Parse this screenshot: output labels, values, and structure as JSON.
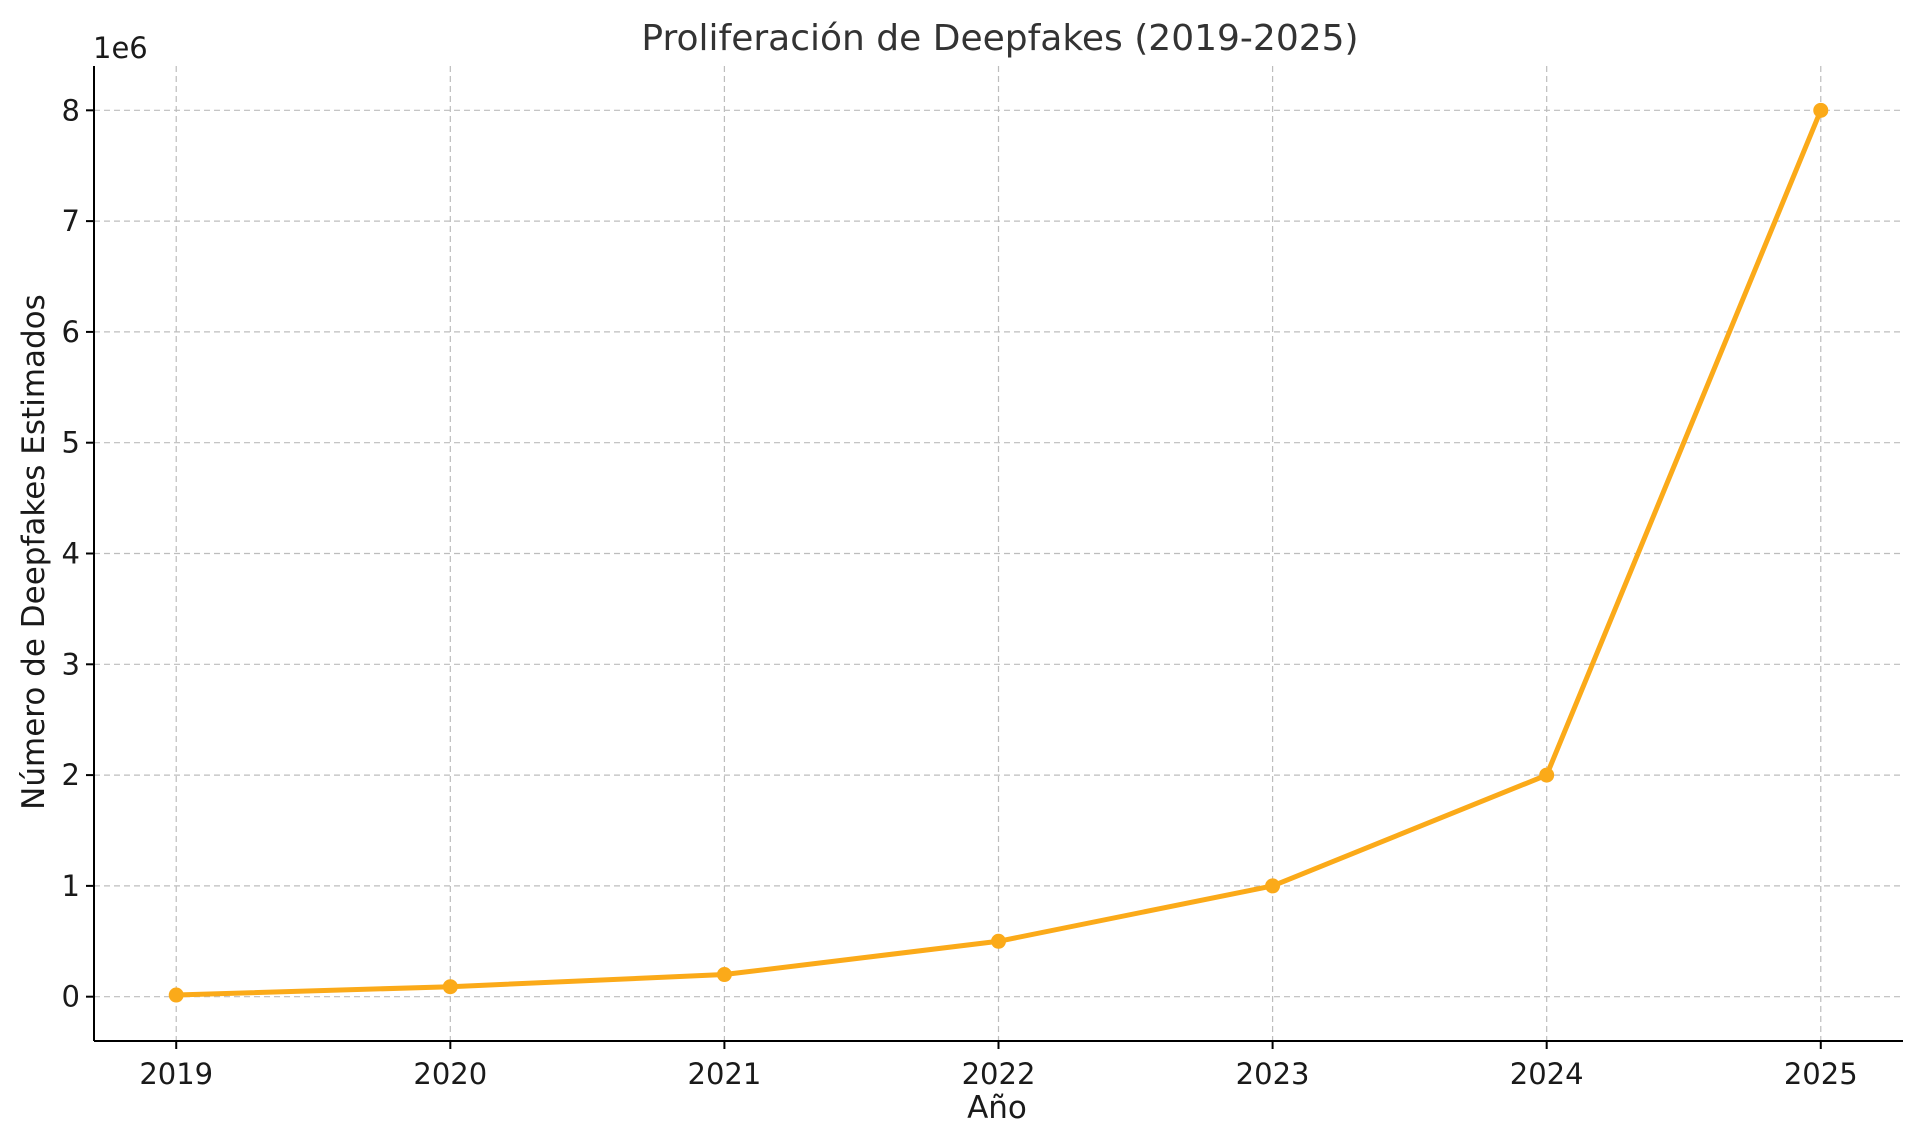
{
  "chart_data": {
    "type": "line",
    "title": "Proliferación de Deepfakes (2019-2025)",
    "xlabel": "Año",
    "ylabel": "Número de Deepfakes Estimados",
    "y_offset_label": "1e6",
    "x": [
      2019,
      2020,
      2021,
      2022,
      2023,
      2024,
      2025
    ],
    "x_tick_labels": [
      "2019",
      "2020",
      "2021",
      "2022",
      "2023",
      "2024",
      "2025"
    ],
    "y_ticks": [
      0,
      1000000,
      2000000,
      3000000,
      4000000,
      5000000,
      6000000,
      7000000,
      8000000
    ],
    "y_tick_labels": [
      "0",
      "1",
      "2",
      "3",
      "4",
      "5",
      "6",
      "7",
      "8"
    ],
    "xlim": [
      2018.7,
      2025.3
    ],
    "ylim": [
      -400000,
      8400000
    ],
    "grid": true,
    "series": [
      {
        "values": [
          15000,
          90000,
          200000,
          500000,
          1000000,
          2000000,
          8000000
        ],
        "color": "#FBAA19",
        "marker": "circle"
      }
    ]
  }
}
